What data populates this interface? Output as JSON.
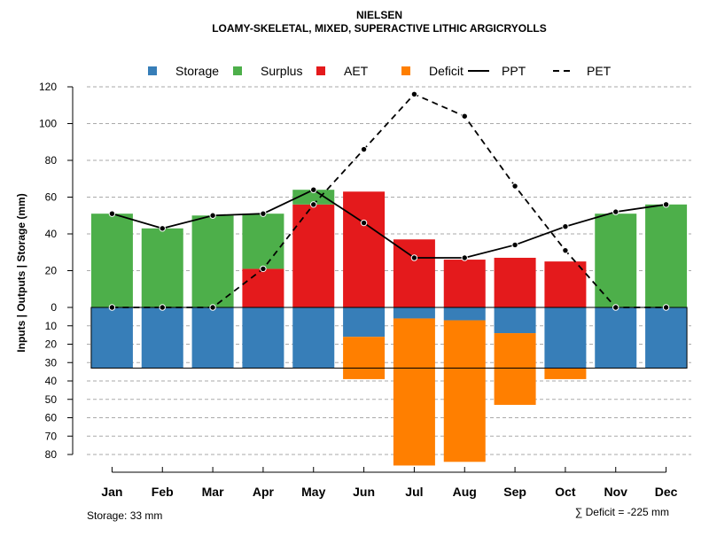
{
  "chart_data": {
    "type": "bar",
    "title": "NIELSEN",
    "subtitle": "LOAMY-SKELETAL, MIXED, SUPERACTIVE LITHIC ARGICRYOLLS",
    "ylabel": "Inputs | Outputs | Storage    (mm)",
    "ylim_top": [
      0,
      120
    ],
    "ylim_bottom": [
      0,
      80
    ],
    "y_ticks_top": [
      0,
      20,
      40,
      60,
      80,
      100,
      120
    ],
    "y_ticks_bottom": [
      10,
      20,
      30,
      40,
      50,
      60,
      70,
      80
    ],
    "categories": [
      "Jan",
      "Feb",
      "Mar",
      "Apr",
      "May",
      "Jun",
      "Jul",
      "Aug",
      "Sep",
      "Oct",
      "Nov",
      "Dec"
    ],
    "legend": [
      {
        "key": "storage",
        "label": "Storage",
        "kind": "box",
        "color": "#377EB8"
      },
      {
        "key": "surplus",
        "label": "Surplus",
        "kind": "box",
        "color": "#4DAF4A"
      },
      {
        "key": "aet",
        "label": "AET",
        "kind": "box",
        "color": "#E41A1C"
      },
      {
        "key": "deficit",
        "label": "Deficit",
        "kind": "box",
        "color": "#FF7F00"
      },
      {
        "key": "ppt",
        "label": "PPT",
        "kind": "solid",
        "color": "#000000"
      },
      {
        "key": "pet",
        "label": "PET",
        "kind": "dashed",
        "color": "#000000"
      }
    ],
    "series": [
      {
        "name": "AET",
        "values": [
          0,
          0,
          0,
          21,
          56,
          63,
          37,
          26,
          27,
          25,
          0,
          0
        ]
      },
      {
        "name": "Surplus",
        "values": [
          51,
          43,
          50,
          30,
          8,
          0,
          0,
          0,
          0,
          0,
          51,
          56
        ]
      },
      {
        "name": "Storage",
        "values": [
          33,
          33,
          33,
          33,
          33,
          16,
          6,
          7,
          14,
          33,
          33,
          33
        ]
      },
      {
        "name": "Deficit",
        "values": [
          0,
          0,
          0,
          0,
          0,
          23,
          80,
          77,
          39,
          6,
          0,
          0
        ]
      },
      {
        "name": "PPT",
        "values": [
          51,
          43,
          50,
          51,
          64,
          46,
          27,
          27,
          34,
          44,
          52,
          56
        ]
      },
      {
        "name": "PET",
        "values": [
          0,
          0,
          0,
          21,
          56,
          86,
          116,
          104,
          66,
          31,
          0,
          0
        ]
      }
    ],
    "storage_capacity": 33,
    "footer_left": "Storage: 33 mm",
    "footer_right": "∑ Deficit = -225 mm"
  }
}
